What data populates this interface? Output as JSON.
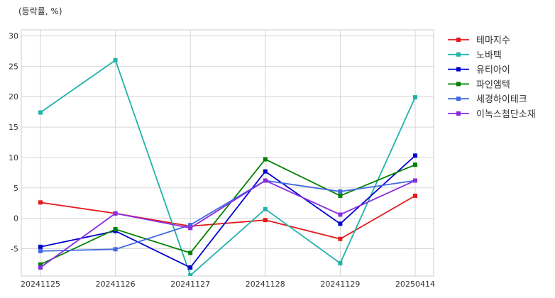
{
  "chart_data": {
    "type": "line",
    "title": "",
    "ylabel": "(등락률, %)",
    "xlabel": "",
    "categories": [
      "20241125",
      "20241126",
      "20241127",
      "20241128",
      "20241129",
      "20250414"
    ],
    "ylim": [
      -9.5,
      31
    ],
    "yticks": [
      -5,
      0,
      5,
      10,
      15,
      20,
      25,
      30
    ],
    "grid": true,
    "legend_position": "right",
    "series": [
      {
        "name": "테마지수",
        "color": "#e41a1c",
        "values": [
          2.6,
          0.8,
          -1.3,
          -0.3,
          -3.4,
          3.7
        ]
      },
      {
        "name": "노바텍",
        "color": "#20b2aa",
        "values": [
          17.4,
          26.0,
          -9.4,
          1.5,
          -7.4,
          19.9
        ]
      },
      {
        "name": "유티아이",
        "color": "#0000cd",
        "values": [
          -4.7,
          -2.1,
          -8.1,
          7.7,
          -0.9,
          10.3
        ]
      },
      {
        "name": "파인엠텍",
        "color": "#008000",
        "values": [
          -7.6,
          -1.8,
          -5.7,
          9.7,
          3.7,
          8.8
        ]
      },
      {
        "name": "세경하이테크",
        "color": "#4169e1",
        "values": [
          -5.4,
          -5.1,
          -1.1,
          6.2,
          4.4,
          6.2
        ]
      },
      {
        "name": "이녹스첨단소재",
        "color": "#8a2be2",
        "values": [
          -8.1,
          0.8,
          -1.6,
          6.2,
          0.6,
          6.2
        ]
      }
    ]
  }
}
